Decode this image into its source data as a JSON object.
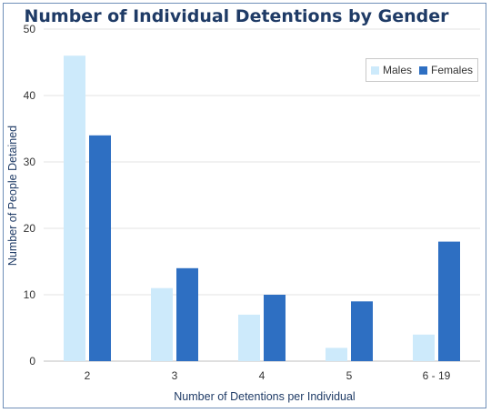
{
  "colors": {
    "males": "#cdeafb",
    "females": "#2e6fc2",
    "grid": "#e3e3e3",
    "axis": "#bfbfbf",
    "frame": "#6f8fb8",
    "title": "#1f3b66"
  },
  "chart_data": {
    "type": "bar",
    "title": "Number of Individual Detentions by Gender",
    "xlabel": "Number of Detentions per Individual",
    "ylabel": "Number of People Detained",
    "categories": [
      "2",
      "3",
      "4",
      "5",
      "6 - 19"
    ],
    "series": [
      {
        "name": "Males",
        "values": [
          46,
          11,
          7,
          2,
          4
        ]
      },
      {
        "name": "Females",
        "values": [
          34,
          14,
          10,
          9,
          18
        ]
      }
    ],
    "ylim": [
      0,
      50
    ],
    "yticks": [
      0,
      10,
      20,
      30,
      40,
      50
    ],
    "grid": true,
    "legend_position": "top-right"
  }
}
